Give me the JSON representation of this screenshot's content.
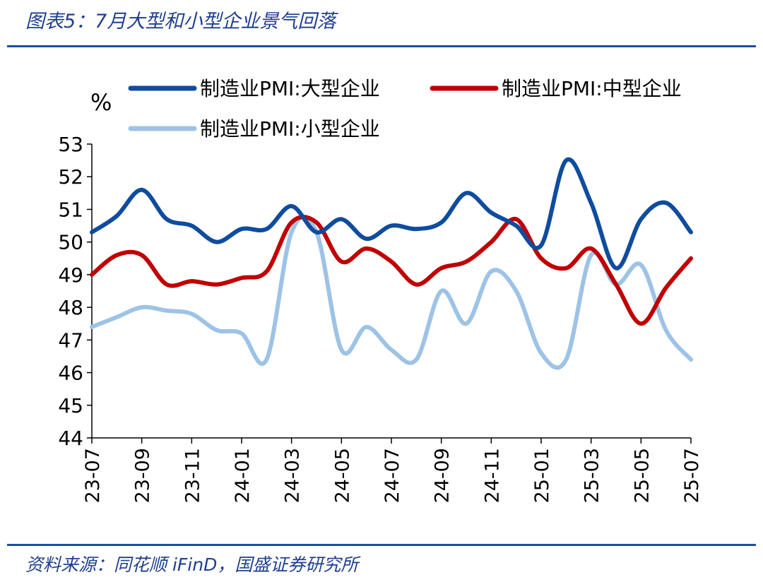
{
  "header": {
    "title": "图表5：7月大型和小型企业景气回落"
  },
  "footer": {
    "source": "资料来源：同花顺 iFinD，国盛证券研究所"
  },
  "chart_data": {
    "type": "line",
    "ylabel": "%",
    "ylim": [
      44,
      53
    ],
    "yticks": [
      44,
      45,
      46,
      47,
      48,
      49,
      50,
      51,
      52,
      53
    ],
    "grid": false,
    "legend_position": "top",
    "categories": [
      "23-07",
      "23-08",
      "23-09",
      "23-10",
      "23-11",
      "23-12",
      "24-01",
      "24-02",
      "24-03",
      "24-04",
      "24-05",
      "24-06",
      "24-07",
      "24-08",
      "24-09",
      "24-10",
      "24-11",
      "24-12",
      "25-01",
      "25-02",
      "25-03",
      "25-04",
      "25-05",
      "25-06",
      "25-07"
    ],
    "xtick_labels": [
      "23-07",
      "23-09",
      "23-11",
      "24-01",
      "24-03",
      "24-05",
      "24-07",
      "24-09",
      "24-11",
      "25-01",
      "25-03",
      "25-05",
      "25-07"
    ],
    "series": [
      {
        "name": "制造业PMI:大型企业",
        "color": "#0f4c9e",
        "values": [
          50.3,
          50.8,
          51.6,
          50.7,
          50.5,
          50.0,
          50.4,
          50.4,
          51.1,
          50.3,
          50.7,
          50.1,
          50.5,
          50.4,
          50.6,
          51.5,
          50.9,
          50.5,
          49.9,
          52.5,
          51.2,
          49.2,
          50.7,
          51.2,
          50.3
        ]
      },
      {
        "name": "制造业PMI:中型企业",
        "color": "#c00000",
        "values": [
          49.0,
          49.6,
          49.6,
          48.7,
          48.8,
          48.7,
          48.9,
          49.1,
          50.6,
          50.6,
          49.4,
          49.8,
          49.4,
          48.7,
          49.2,
          49.4,
          50.0,
          50.7,
          49.5,
          49.2,
          49.8,
          48.7,
          47.5,
          48.6,
          49.5
        ]
      },
      {
        "name": "制造业PMI:小型企业",
        "color": "#9dc3e6",
        "values": [
          47.4,
          47.7,
          48.0,
          47.9,
          47.8,
          47.3,
          47.2,
          46.4,
          50.3,
          50.3,
          46.7,
          47.4,
          46.7,
          46.4,
          48.5,
          47.5,
          49.1,
          48.5,
          46.6,
          46.4,
          49.6,
          48.7,
          49.3,
          47.3,
          46.4
        ]
      }
    ]
  }
}
